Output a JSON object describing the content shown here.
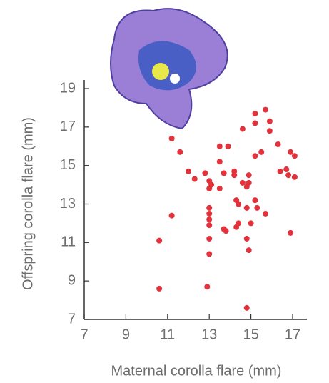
{
  "chart_data": {
    "type": "scatter",
    "xlabel": "Maternal corolla flare (mm)",
    "ylabel": "Offspring corolla flare (mm)",
    "x": [
      10.6,
      10.6,
      11.2,
      11.2,
      11.6,
      12.0,
      12.3,
      12.8,
      13.0,
      13.0,
      13.1,
      13.0,
      13.0,
      13.0,
      13.0,
      13.0,
      13.0,
      12.9,
      13.5,
      13.5,
      13.5,
      13.9,
      13.7,
      13.7,
      13.8,
      14.2,
      14.2,
      14.3,
      14.4,
      14.3,
      14.4,
      14.6,
      14.6,
      14.8,
      14.9,
      14.9,
      14.8,
      14.8,
      14.9,
      14.8,
      15.0,
      15.2,
      15.2,
      15.2,
      15.2,
      15.3,
      15.5,
      15.7,
      15.7,
      15.9,
      15.9,
      16.3,
      16.4,
      16.7,
      16.8,
      16.9,
      17.1,
      17.1,
      16.9
    ],
    "y": [
      8.6,
      11.1,
      16.4,
      12.4,
      15.7,
      14.7,
      14.3,
      14.6,
      14.2,
      13.8,
      14.0,
      12.8,
      12.5,
      12.2,
      11.9,
      11.2,
      10.4,
      8.7,
      13.8,
      15.2,
      16.0,
      16.0,
      14.6,
      11.7,
      11.6,
      14.5,
      14.7,
      13.2,
      13.0,
      11.8,
      12.0,
      16.9,
      14.1,
      13.9,
      14.5,
      14.1,
      12.8,
      11.2,
      10.6,
      7.6,
      12.0,
      17.2,
      17.7,
      15.5,
      13.2,
      12.8,
      15.7,
      17.9,
      12.5,
      17.3,
      16.8,
      16.1,
      14.7,
      14.8,
      14.5,
      15.7,
      15.5,
      14.4,
      11.5
    ],
    "color": "#e2323c",
    "xlim": [
      7,
      18
    ],
    "ylim": [
      7,
      19
    ],
    "xticks": [
      7,
      9,
      11,
      13,
      15,
      17
    ],
    "yticks": [
      7,
      9,
      11,
      13,
      15,
      17,
      19
    ]
  }
}
